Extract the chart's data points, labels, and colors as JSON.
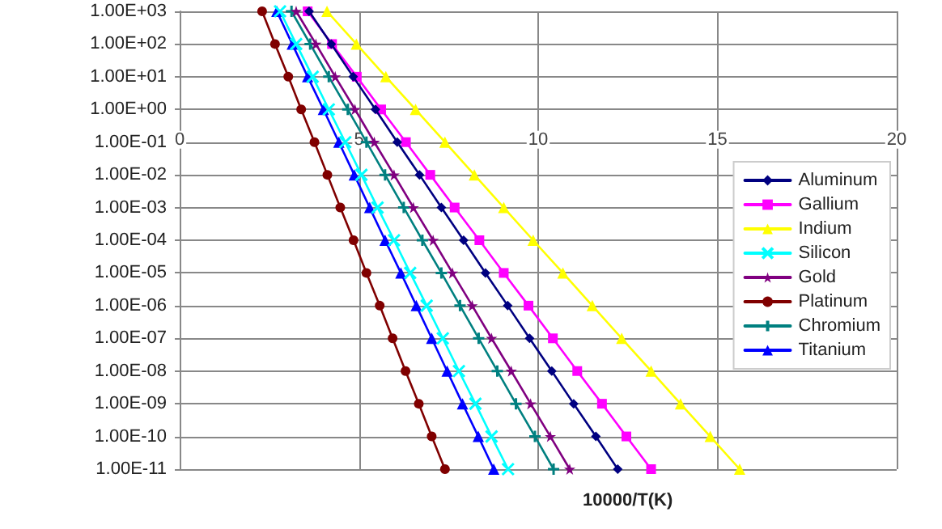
{
  "chart_data": {
    "type": "line",
    "xlabel": "10000/T(K)",
    "log": "y",
    "grid": true,
    "legend": "right",
    "line_style": "solid",
    "xlim": [
      0,
      20
    ],
    "xticks": [
      0,
      5,
      10,
      15,
      20
    ],
    "ylim": [
      1e-11,
      1000
    ],
    "yticks": [
      {
        "value": 1000,
        "label": "1.00E+03"
      },
      {
        "value": 100,
        "label": "1.00E+02"
      },
      {
        "value": 10,
        "label": "1.00E+01"
      },
      {
        "value": 1,
        "label": "1.00E+00"
      },
      {
        "value": 0.1,
        "label": "1.00E-01"
      },
      {
        "value": 0.01,
        "label": "1.00E-02"
      },
      {
        "value": 0.001,
        "label": "1.00E-03"
      },
      {
        "value": 0.0001,
        "label": "1.00E-04"
      },
      {
        "value": 1e-05,
        "label": "1.00E-05"
      },
      {
        "value": 1e-06,
        "label": "1.00E-06"
      },
      {
        "value": 1e-07,
        "label": "1.00E-07"
      },
      {
        "value": 1e-08,
        "label": "1.00E-08"
      },
      {
        "value": 1e-09,
        "label": "1.00E-09"
      },
      {
        "value": 1e-10,
        "label": "1.00E-10"
      },
      {
        "value": 1e-11,
        "label": "1.00E-11"
      }
    ],
    "series": [
      {
        "name": "Aluminum",
        "color": "#000080",
        "marker": "diamond",
        "x": [
          3.61,
          4.23,
          4.84,
          5.46,
          6.07,
          6.69,
          7.3,
          7.92,
          8.53,
          9.15,
          9.76,
          10.38,
          10.99,
          11.61,
          12.22
        ],
        "values": [
          1000,
          100,
          10,
          1,
          0.1,
          0.01,
          0.001,
          0.0001,
          1e-05,
          1e-06,
          1e-07,
          1e-08,
          1e-09,
          1e-10,
          1e-11
        ]
      },
      {
        "name": "Gallium",
        "color": "#ff00ff",
        "marker": "square",
        "x": [
          3.57,
          4.25,
          4.94,
          5.62,
          6.31,
          6.99,
          7.67,
          8.36,
          9.04,
          9.73,
          10.41,
          11.09,
          11.78,
          12.46,
          13.15
        ],
        "values": [
          1000,
          100,
          10,
          1,
          0.1,
          0.01,
          0.001,
          0.0001,
          1e-05,
          1e-06,
          1e-07,
          1e-08,
          1e-09,
          1e-10,
          1e-11
        ]
      },
      {
        "name": "Indium",
        "color": "#ffff00",
        "marker": "triangle",
        "x": [
          4.11,
          4.93,
          5.75,
          6.58,
          7.4,
          8.22,
          9.04,
          9.86,
          10.69,
          11.51,
          12.33,
          13.15,
          13.97,
          14.8,
          15.62
        ],
        "values": [
          1000,
          100,
          10,
          1,
          0.1,
          0.01,
          0.001,
          0.0001,
          1e-05,
          1e-06,
          1e-07,
          1e-08,
          1e-09,
          1e-10,
          1e-11
        ]
      },
      {
        "name": "Silicon",
        "color": "#00ffff",
        "marker": "cross",
        "x": [
          2.8,
          3.25,
          3.71,
          4.16,
          4.62,
          5.07,
          5.52,
          5.98,
          6.43,
          6.89,
          7.34,
          7.79,
          8.25,
          8.7,
          9.16
        ],
        "values": [
          1000,
          100,
          10,
          1,
          0.1,
          0.01,
          0.001,
          0.0001,
          1e-05,
          1e-06,
          1e-07,
          1e-08,
          1e-09,
          1e-10,
          1e-11
        ]
      },
      {
        "name": "Gold",
        "color": "#800080",
        "marker": "star",
        "x": [
          3.25,
          3.8,
          4.34,
          4.89,
          5.43,
          5.98,
          6.52,
          7.07,
          7.61,
          8.16,
          8.7,
          9.25,
          9.79,
          10.34,
          10.88
        ],
        "values": [
          1000,
          100,
          10,
          1,
          0.1,
          0.01,
          0.001,
          0.0001,
          1e-05,
          1e-06,
          1e-07,
          1e-08,
          1e-09,
          1e-10,
          1e-11
        ]
      },
      {
        "name": "Platinum",
        "color": "#800000",
        "marker": "circle",
        "x": [
          2.3,
          2.66,
          3.03,
          3.39,
          3.76,
          4.12,
          4.48,
          4.85,
          5.21,
          5.58,
          5.94,
          6.3,
          6.67,
          7.03,
          7.4
        ],
        "values": [
          1000,
          100,
          10,
          1,
          0.1,
          0.01,
          0.001,
          0.0001,
          1e-05,
          1e-06,
          1e-07,
          1e-08,
          1e-09,
          1e-10,
          1e-11
        ]
      },
      {
        "name": "Chromium",
        "color": "#008080",
        "marker": "plus",
        "x": [
          3.12,
          3.64,
          4.16,
          4.69,
          5.21,
          5.73,
          6.25,
          6.77,
          7.3,
          7.82,
          8.34,
          8.86,
          9.38,
          9.91,
          10.43
        ],
        "values": [
          1000,
          100,
          10,
          1,
          0.1,
          0.01,
          0.001,
          0.0001,
          1e-05,
          1e-06,
          1e-07,
          1e-08,
          1e-09,
          1e-10,
          1e-11
        ]
      },
      {
        "name": "Titanium",
        "color": "#0000ff",
        "marker": "triangle",
        "x": [
          2.71,
          3.14,
          3.57,
          4.01,
          4.44,
          4.87,
          5.3,
          5.73,
          6.17,
          6.6,
          7.03,
          7.46,
          7.89,
          8.33,
          8.76
        ],
        "values": [
          1000,
          100,
          10,
          1,
          0.1,
          0.01,
          0.001,
          0.0001,
          1e-05,
          1e-06,
          1e-07,
          1e-08,
          1e-09,
          1e-10,
          1e-11
        ]
      }
    ]
  }
}
